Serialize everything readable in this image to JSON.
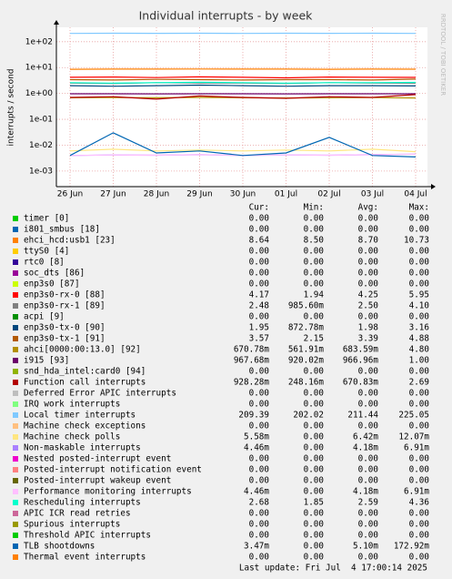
{
  "chart_data": {
    "type": "line",
    "title": "Individual interrupts - by week",
    "y_label": "interrupts / second",
    "watermark": "RRDTOOL / TOBI OETIKER",
    "categories": [
      "26 Jun",
      "27 Jun",
      "28 Jun",
      "29 Jun",
      "30 Jun",
      "01 Jul",
      "02 Jul",
      "03 Jul",
      "04 Jul"
    ],
    "ylim": [
      0.00025,
      360
    ],
    "log_scale": true,
    "grid": true,
    "yticks": [
      {
        "value": 0.001,
        "label": "1e-03"
      },
      {
        "value": 0.01,
        "label": "1e-02"
      },
      {
        "value": 0.1,
        "label": "1e-01"
      },
      {
        "value": 1,
        "label": "1e+00"
      },
      {
        "value": 10,
        "label": "1e+01"
      },
      {
        "value": 100,
        "label": "1e+02"
      }
    ],
    "legend_headers": [
      "Cur:",
      "Min:",
      "Avg:",
      "Max:"
    ],
    "series": [
      {
        "name": "timer [0]",
        "color": "#00cc00",
        "values": [
          null,
          null,
          null,
          null,
          null,
          null,
          null,
          null,
          null
        ],
        "stats": [
          "0.00",
          "0.00",
          "0.00",
          "0.00"
        ]
      },
      {
        "name": "i801_smbus [18]",
        "color": "#0066b3",
        "values": [
          null,
          null,
          null,
          null,
          null,
          null,
          null,
          null,
          null
        ],
        "stats": [
          "0.00",
          "0.00",
          "0.00",
          "0.00"
        ]
      },
      {
        "name": "ehci_hcd:usb1 [23]",
        "color": "#ff8000",
        "values": [
          8.6,
          8.7,
          8.7,
          8.8,
          8.7,
          8.7,
          8.6,
          8.7,
          8.64
        ],
        "stats": [
          "8.64",
          "8.50",
          "8.70",
          "10.73"
        ]
      },
      {
        "name": "ttyS0 [4]",
        "color": "#ffcc00",
        "values": [
          null,
          null,
          null,
          null,
          null,
          null,
          null,
          null,
          null
        ],
        "stats": [
          "0.00",
          "0.00",
          "0.00",
          "0.00"
        ]
      },
      {
        "name": "rtc0 [8]",
        "color": "#330099",
        "values": [
          null,
          null,
          null,
          null,
          null,
          null,
          null,
          null,
          null
        ],
        "stats": [
          "0.00",
          "0.00",
          "0.00",
          "0.00"
        ]
      },
      {
        "name": "soc_dts [86]",
        "color": "#990099",
        "values": [
          null,
          null,
          null,
          null,
          null,
          null,
          null,
          null,
          null
        ],
        "stats": [
          "0.00",
          "0.00",
          "0.00",
          "0.00"
        ]
      },
      {
        "name": "enp3s0 [87]",
        "color": "#ccff00",
        "values": [
          null,
          null,
          null,
          null,
          null,
          null,
          null,
          null,
          null
        ],
        "stats": [
          "0.00",
          "0.00",
          "0.00",
          "0.00"
        ]
      },
      {
        "name": "enp3s0-rx-0 [88]",
        "color": "#ff0000",
        "values": [
          4.2,
          4.3,
          4.1,
          4.4,
          4.2,
          4.0,
          4.3,
          4.2,
          4.17
        ],
        "stats": [
          "4.17",
          "1.94",
          "4.25",
          "5.95"
        ]
      },
      {
        "name": "enp3s0-rx-1 [89]",
        "color": "#808080",
        "values": [
          2.5,
          2.4,
          2.6,
          2.5,
          2.5,
          2.4,
          2.6,
          2.5,
          2.48
        ],
        "stats": [
          "2.48",
          "985.60m",
          "2.50",
          "4.10"
        ]
      },
      {
        "name": "acpi [9]",
        "color": "#008f00",
        "values": [
          null,
          null,
          null,
          null,
          null,
          null,
          null,
          null,
          null
        ],
        "stats": [
          "0.00",
          "0.00",
          "0.00",
          "0.00"
        ]
      },
      {
        "name": "enp3s0-tx-0 [90]",
        "color": "#00487d",
        "values": [
          2.0,
          1.9,
          2.0,
          2.1,
          2.0,
          1.9,
          2.0,
          2.0,
          1.95
        ],
        "stats": [
          "1.95",
          "872.78m",
          "1.98",
          "3.16"
        ]
      },
      {
        "name": "enp3s0-tx-1 [91]",
        "color": "#b35a00",
        "values": [
          3.4,
          3.3,
          3.5,
          3.4,
          3.3,
          3.4,
          3.4,
          3.3,
          3.57
        ],
        "stats": [
          "3.57",
          "2.15",
          "3.39",
          "4.88"
        ]
      },
      {
        "name": "ahci[0000:00:13.0] [92]",
        "color": "#b38f00",
        "values": [
          0.68,
          0.69,
          0.68,
          0.7,
          0.68,
          0.67,
          0.68,
          0.69,
          0.67
        ],
        "stats": [
          "670.78m",
          "561.91m",
          "683.59m",
          "4.80"
        ]
      },
      {
        "name": "i915 [93]",
        "color": "#6b006b",
        "values": [
          0.97,
          0.97,
          0.96,
          0.97,
          0.97,
          0.96,
          0.97,
          0.97,
          0.97
        ],
        "stats": [
          "967.68m",
          "920.02m",
          "966.96m",
          "1.00"
        ]
      },
      {
        "name": "snd_hda_intel:card0 [94]",
        "color": "#8fb300",
        "values": [
          null,
          null,
          null,
          null,
          null,
          null,
          null,
          null,
          null
        ],
        "stats": [
          "0.00",
          "0.00",
          "0.00",
          "0.00"
        ]
      },
      {
        "name": "Function call interrupts",
        "color": "#b30000",
        "values": [
          0.7,
          0.75,
          0.6,
          0.8,
          0.7,
          0.65,
          0.75,
          0.7,
          0.9
        ],
        "stats": [
          "928.28m",
          "248.16m",
          "670.83m",
          "2.69"
        ]
      },
      {
        "name": "Deferred Error APIC interrupts",
        "color": "#bebebe",
        "values": [
          null,
          null,
          null,
          null,
          null,
          null,
          null,
          null,
          null
        ],
        "stats": [
          "0.00",
          "0.00",
          "0.00",
          "0.00"
        ]
      },
      {
        "name": "IRQ work interrupts",
        "color": "#80ff80",
        "values": [
          null,
          null,
          null,
          null,
          null,
          null,
          null,
          null,
          null
        ],
        "stats": [
          "0.00",
          "0.00",
          "0.00",
          "0.00"
        ]
      },
      {
        "name": "Local timer interrupts",
        "color": "#80c9ff",
        "values": [
          210,
          212,
          211,
          213,
          210,
          212,
          211,
          212,
          209
        ],
        "stats": [
          "209.39",
          "202.02",
          "211.44",
          "225.05"
        ]
      },
      {
        "name": "Machine check exceptions",
        "color": "#ffc080",
        "values": [
          null,
          null,
          null,
          null,
          null,
          null,
          null,
          null,
          null
        ],
        "stats": [
          "0.00",
          "0.00",
          "0.00",
          "0.00"
        ]
      },
      {
        "name": "Machine check polls",
        "color": "#ffe680",
        "values": [
          0.006,
          0.007,
          0.006,
          0.0065,
          0.006,
          0.0065,
          0.006,
          0.007,
          0.0056
        ],
        "stats": [
          "5.58m",
          "0.00",
          "6.42m",
          "12.07m"
        ]
      },
      {
        "name": "Non-maskable interrupts",
        "color": "#aa80ff",
        "values": [
          0.004,
          0.0042,
          0.0041,
          0.0043,
          0.004,
          0.0042,
          0.0041,
          0.0043,
          0.0045
        ],
        "stats": [
          "4.46m",
          "0.00",
          "4.18m",
          "6.91m"
        ]
      },
      {
        "name": "Nested posted-interrupt event",
        "color": "#ee00cc",
        "values": [
          null,
          null,
          null,
          null,
          null,
          null,
          null,
          null,
          null
        ],
        "stats": [
          "0.00",
          "0.00",
          "0.00",
          "0.00"
        ]
      },
      {
        "name": "Posted-interrupt notification event",
        "color": "#ff8080",
        "values": [
          null,
          null,
          null,
          null,
          null,
          null,
          null,
          null,
          null
        ],
        "stats": [
          "0.00",
          "0.00",
          "0.00",
          "0.00"
        ]
      },
      {
        "name": "Posted-interrupt wakeup event",
        "color": "#666600",
        "values": [
          null,
          null,
          null,
          null,
          null,
          null,
          null,
          null,
          null
        ],
        "stats": [
          "0.00",
          "0.00",
          "0.00",
          "0.00"
        ]
      },
      {
        "name": "Performance monitoring interrupts",
        "color": "#ffbfff",
        "values": [
          0.004,
          0.0042,
          0.0041,
          0.0043,
          0.004,
          0.0042,
          0.0041,
          0.0043,
          0.0045
        ],
        "stats": [
          "4.46m",
          "0.00",
          "4.18m",
          "6.91m"
        ]
      },
      {
        "name": "Rescheduling interrupts",
        "color": "#00ffcc",
        "values": [
          2.6,
          2.5,
          2.6,
          2.7,
          2.6,
          2.5,
          2.6,
          2.6,
          2.68
        ],
        "stats": [
          "2.68",
          "1.85",
          "2.59",
          "4.36"
        ]
      },
      {
        "name": "APIC ICR read retries",
        "color": "#cc6699",
        "values": [
          null,
          null,
          null,
          null,
          null,
          null,
          null,
          null,
          null
        ],
        "stats": [
          "0.00",
          "0.00",
          "0.00",
          "0.00"
        ]
      },
      {
        "name": "Spurious interrupts",
        "color": "#999900",
        "values": [
          null,
          null,
          null,
          null,
          null,
          null,
          null,
          null,
          null
        ],
        "stats": [
          "0.00",
          "0.00",
          "0.00",
          "0.00"
        ]
      },
      {
        "name": "Threshold APIC interrupts",
        "color": "#00cc00",
        "values": [
          null,
          null,
          null,
          null,
          null,
          null,
          null,
          null,
          null
        ],
        "stats": [
          "0.00",
          "0.00",
          "0.00",
          "0.00"
        ]
      },
      {
        "name": "TLB shootdowns",
        "color": "#0066b3",
        "values": [
          0.004,
          0.03,
          0.005,
          0.006,
          0.004,
          0.005,
          0.02,
          0.004,
          0.0035
        ],
        "stats": [
          "3.47m",
          "0.00",
          "5.10m",
          "172.92m"
        ]
      },
      {
        "name": "Thermal event interrupts",
        "color": "#ff8000",
        "values": [
          null,
          null,
          null,
          null,
          null,
          null,
          null,
          null,
          null
        ],
        "stats": [
          "0.00",
          "0.00",
          "0.00",
          "0.00"
        ]
      }
    ],
    "footer": "Last update: Fri Jul  4 17:00:14 2025"
  }
}
